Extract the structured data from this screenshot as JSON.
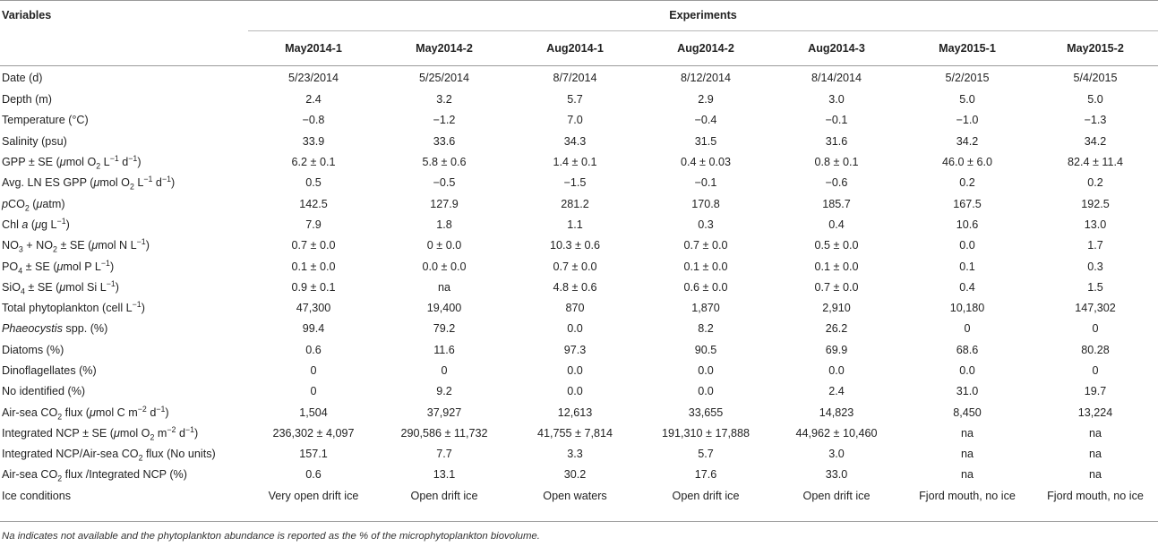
{
  "header": {
    "variables_label": "Variables",
    "experiments_label": "Experiments",
    "columns": [
      "May2014-1",
      "May2014-2",
      "Aug2014-1",
      "Aug2014-2",
      "Aug2014-3",
      "May2015-1",
      "May2015-2"
    ]
  },
  "rows": [
    {
      "label_html": "Date (d)",
      "values": [
        "5/23/2014",
        "5/25/2014",
        "8/7/2014",
        "8/12/2014",
        "8/14/2014",
        "5/2/2015",
        "5/4/2015"
      ]
    },
    {
      "label_html": "Depth (m)",
      "values": [
        "2.4",
        "3.2",
        "5.7",
        "2.9",
        "3.0",
        "5.0",
        "5.0"
      ]
    },
    {
      "label_html": "Temperature (°C)",
      "values": [
        "−0.8",
        "−1.2",
        "7.0",
        "−0.4",
        "−0.1",
        "−1.0",
        "−1.3"
      ]
    },
    {
      "label_html": "Salinity (psu)",
      "values": [
        "33.9",
        "33.6",
        "34.3",
        "31.5",
        "31.6",
        "34.2",
        "34.2"
      ]
    },
    {
      "label_html": "GPP ± SE (<i>μ</i>mol O<sub>2</sub> L<sup>−1</sup> d<sup>−1</sup>)",
      "values": [
        "6.2 ± 0.1",
        "5.8 ± 0.6",
        "1.4 ± 0.1",
        "0.4 ± 0.03",
        "0.8 ± 0.1",
        "46.0 ± 6.0",
        "82.4 ± 11.4"
      ]
    },
    {
      "label_html": "Avg. LN ES GPP (<i>μ</i>mol O<sub>2</sub> L<sup>−1</sup> d<sup>−1</sup>)",
      "values": [
        "0.5",
        "−0.5",
        "−1.5",
        "−0.1",
        "−0.6",
        "0.2",
        "0.2"
      ]
    },
    {
      "label_html": "<i>p</i>CO<sub>2</sub> (<i>μ</i>atm)",
      "values": [
        "142.5",
        "127.9",
        "281.2",
        "170.8",
        "185.7",
        "167.5",
        "192.5"
      ]
    },
    {
      "label_html": "Chl <i>a</i> (<i>μ</i>g L<sup>−1</sup>)",
      "values": [
        "7.9",
        "1.8",
        "1.1",
        "0.3",
        "0.4",
        "10.6",
        "13.0"
      ]
    },
    {
      "label_html": "NO<sub>3</sub> + NO<sub>2</sub> ± SE (<i>μ</i>mol N L<sup>−1</sup>)",
      "values": [
        "0.7 ± 0.0",
        "0 ± 0.0",
        "10.3 ± 0.6",
        "0.7 ± 0.0",
        "0.5 ± 0.0",
        "0.0",
        "1.7"
      ]
    },
    {
      "label_html": "PO<sub>4</sub> ± SE (<i>μ</i>mol P L<sup>−1</sup>)",
      "values": [
        "0.1 ± 0.0",
        "0.0 ± 0.0",
        "0.7 ± 0.0",
        "0.1 ± 0.0",
        "0.1 ± 0.0",
        "0.1",
        "0.3"
      ]
    },
    {
      "label_html": "SiO<sub>4</sub> ± SE (<i>μ</i>mol Si L<sup>−1</sup>)",
      "values": [
        "0.9 ± 0.1",
        "na",
        "4.8 ± 0.6",
        "0.6 ± 0.0",
        "0.7 ± 0.0",
        "0.4",
        "1.5"
      ]
    },
    {
      "label_html": "Total phytoplankton (cell L<sup>−1</sup>)",
      "values": [
        "47,300",
        "19,400",
        "870",
        "1,870",
        "2,910",
        "10,180",
        "147,302"
      ]
    },
    {
      "label_html": "<i>Phaeocystis</i> spp. (%)",
      "values": [
        "99.4",
        "79.2",
        "0.0",
        "8.2",
        "26.2",
        "0",
        "0"
      ]
    },
    {
      "label_html": "Diatoms (%)",
      "values": [
        "0.6",
        "11.6",
        "97.3",
        "90.5",
        "69.9",
        "68.6",
        "80.28"
      ]
    },
    {
      "label_html": "Dinoflagellates (%)",
      "values": [
        "0",
        "0",
        "0.0",
        "0.0",
        "0.0",
        "0.0",
        "0"
      ]
    },
    {
      "label_html": "No identified (%)",
      "values": [
        "0",
        "9.2",
        "0.0",
        "0.0",
        "2.4",
        "31.0",
        "19.7"
      ]
    },
    {
      "label_html": "Air-sea CO<sub>2</sub> flux (<i>μ</i>mol C m<sup>−2</sup> d<sup>−1</sup>)",
      "values": [
        "1,504",
        "37,927",
        "12,613",
        "33,655",
        "14,823",
        "8,450",
        "13,224"
      ]
    },
    {
      "label_html": "Integrated NCP ± SE (<i>μ</i>mol O<sub>2</sub> m<sup>−2</sup> d<sup>−1</sup>)",
      "values": [
        "236,302 ± 4,097",
        "290,586 ± 11,732",
        "41,755 ± 7,814",
        "191,310 ± 17,888",
        "44,962 ± 10,460",
        "na",
        "na"
      ]
    },
    {
      "label_html": "Integrated NCP/Air-sea CO<sub>2</sub> flux (No units)",
      "values": [
        "157.1",
        "7.7",
        "3.3",
        "5.7",
        "3.0",
        "na",
        "na"
      ]
    },
    {
      "label_html": "Air-sea CO<sub>2</sub> flux /Integrated NCP (%)",
      "values": [
        "0.6",
        "13.1",
        "30.2",
        "17.6",
        "33.0",
        "na",
        "na"
      ]
    },
    {
      "label_html": "Ice conditions",
      "values": [
        "Very open drift ice",
        "Open drift ice",
        "Open waters",
        "Open drift ice",
        "Open drift ice",
        "Fjord mouth, no ice",
        "Fjord mouth, no ice"
      ]
    }
  ],
  "footnote": "Na indicates not available and the phytoplankton abundance is reported as the % of the microphytoplankton biovolume."
}
